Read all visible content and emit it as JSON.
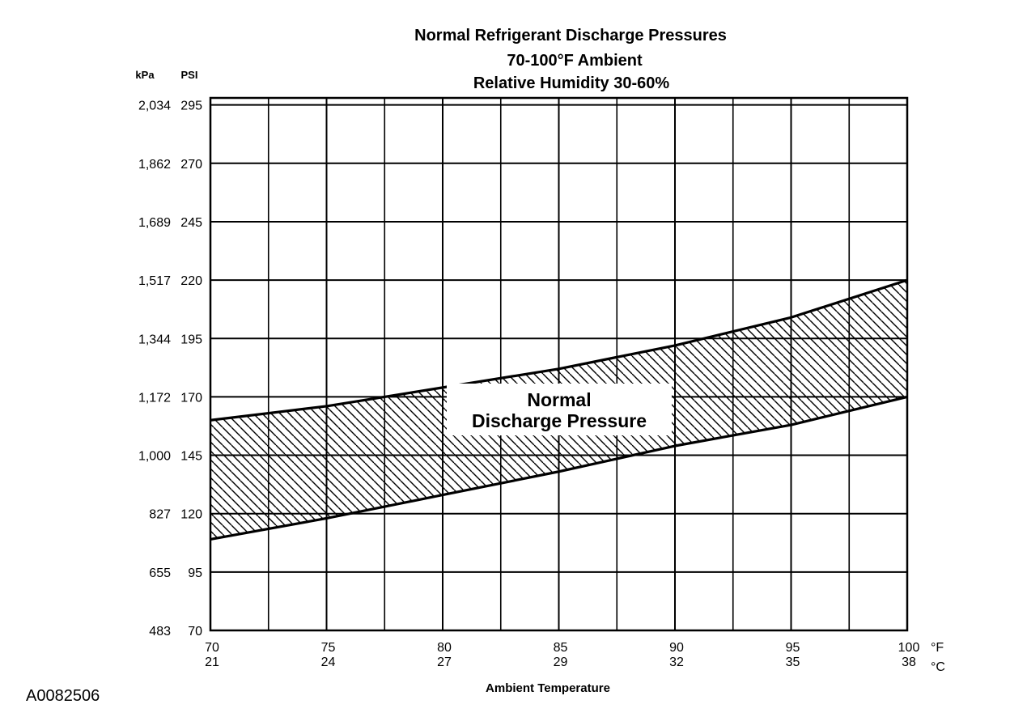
{
  "chart_data": {
    "type": "area",
    "title": "Normal Refrigerant Discharge Pressures",
    "subtitle_lines": [
      "70-100°F Ambient",
      "Relative Humidity 30-60%"
    ],
    "xlabel": "Ambient Temperature",
    "x_unit_primary": "°F",
    "x_unit_secondary": "°C",
    "y_unit_left": "kPa",
    "y_unit_right": "PSI",
    "xlim": [
      70,
      100
    ],
    "ylim": [
      70,
      298
    ],
    "x_ticks": [
      {
        "f": "70",
        "c": "21",
        "value": 70
      },
      {
        "f": "75",
        "c": "24",
        "value": 75
      },
      {
        "f": "80",
        "c": "27",
        "value": 80
      },
      {
        "f": "85",
        "c": "29",
        "value": 85
      },
      {
        "f": "90",
        "c": "32",
        "value": 90
      },
      {
        "f": "95",
        "c": "35",
        "value": 95
      },
      {
        "f": "100",
        "c": "38",
        "value": 100
      }
    ],
    "x_grid_minor": [
      72.5,
      77.5,
      82.5,
      87.5,
      92.5,
      97.5
    ],
    "y_ticks": [
      {
        "psi": "70",
        "kpa": "483",
        "value": 70
      },
      {
        "psi": "95",
        "kpa": "655",
        "value": 95
      },
      {
        "psi": "120",
        "kpa": "827",
        "value": 120
      },
      {
        "psi": "145",
        "kpa": "1,000",
        "value": 145
      },
      {
        "psi": "170",
        "kpa": "1,172",
        "value": 170
      },
      {
        "psi": "195",
        "kpa": "1,344",
        "value": 195
      },
      {
        "psi": "220",
        "kpa": "1,517",
        "value": 220
      },
      {
        "psi": "245",
        "kpa": "1,689",
        "value": 245
      },
      {
        "psi": "270",
        "kpa": "1,862",
        "value": 270
      },
      {
        "psi": "295",
        "kpa": "2,034",
        "value": 295
      }
    ],
    "series": [
      {
        "role": "upper",
        "x": [
          70,
          75,
          80,
          85,
          90,
          95,
          100
        ],
        "y": [
          160,
          166,
          174,
          182,
          192,
          204,
          220
        ]
      },
      {
        "role": "lower",
        "x": [
          70,
          75,
          80,
          85,
          90,
          95,
          100
        ],
        "y": [
          109,
          118,
          128,
          138,
          149,
          158,
          170
        ]
      }
    ],
    "band_label_lines": [
      "Normal",
      "Discharge Pressure"
    ],
    "fill_pattern": "diagonal-hatch",
    "grid": true
  },
  "figure_id": "A0082506"
}
